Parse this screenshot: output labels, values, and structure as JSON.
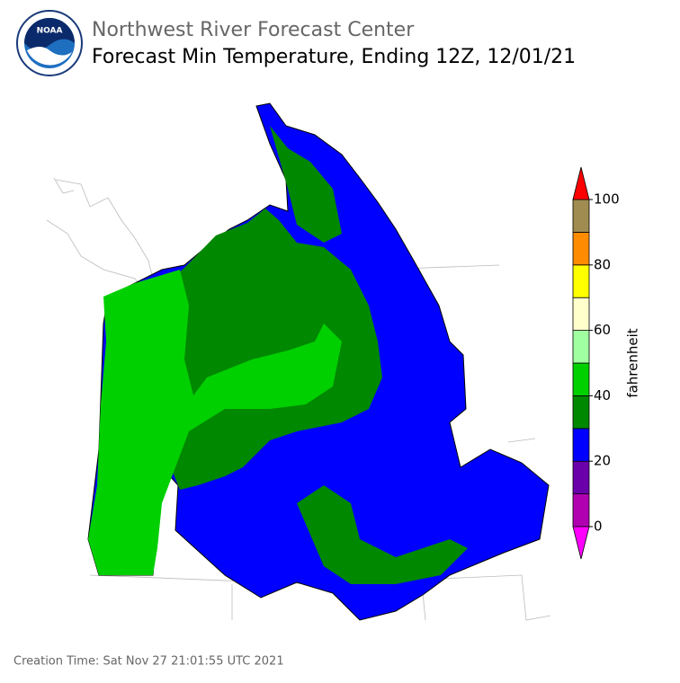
{
  "header": {
    "org": "Northwest River Forecast Center",
    "title": "Forecast Min Temperature, Ending 12Z, 12/01/21",
    "logo_text": "NOAA"
  },
  "colorbar": {
    "label": "fahrenheit",
    "lim": [
      0,
      100
    ],
    "ticks": [
      0,
      20,
      40,
      60,
      80,
      100
    ],
    "bins": [
      0,
      10,
      20,
      30,
      40,
      50,
      60,
      70,
      80,
      90,
      100
    ],
    "colors": [
      "#b000b0",
      "#6a00aa",
      "#0000ff",
      "#008800",
      "#00d000",
      "#a0ffa0",
      "#ffffcc",
      "#ffff00",
      "#ff8c00",
      "#a08c50"
    ],
    "under_color": "#ff00ff",
    "over_color": "#ff0000"
  },
  "footer": {
    "creation_time": "Creation Time: Sat Nov 27 21:01:55 UTC 2021"
  }
}
